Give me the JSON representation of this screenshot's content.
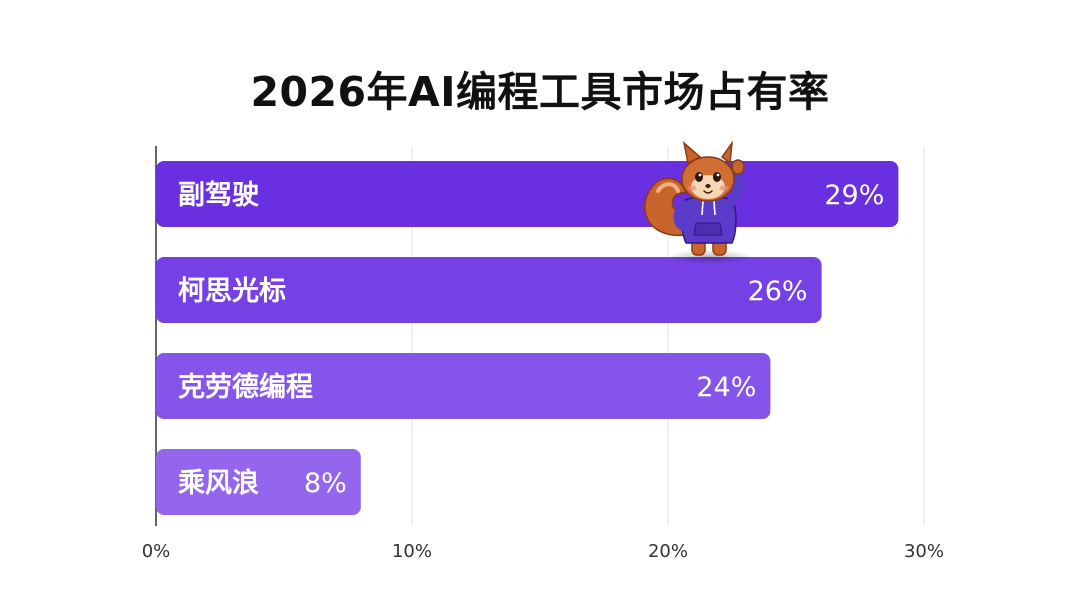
{
  "chart_data": {
    "type": "bar",
    "orientation": "horizontal",
    "title": "2026年AI编程工具市场占有率",
    "categories": [
      "副驾驶",
      "柯思光标",
      "克劳德编程",
      "乘风浪"
    ],
    "values": [
      29,
      26,
      24,
      8
    ],
    "value_labels": [
      "29%",
      "26%",
      "24%",
      "8%"
    ],
    "xlim": [
      0,
      30
    ],
    "xticks": [
      0,
      10,
      20,
      30
    ],
    "xtick_labels": [
      "0%",
      "10%",
      "20%",
      "30%"
    ],
    "grid": true,
    "bar_colors": [
      "#6A2FE0",
      "#7541E6",
      "#8554EA",
      "#9466EE"
    ],
    "mascot": "squirrel-in-hoodie-waving"
  }
}
